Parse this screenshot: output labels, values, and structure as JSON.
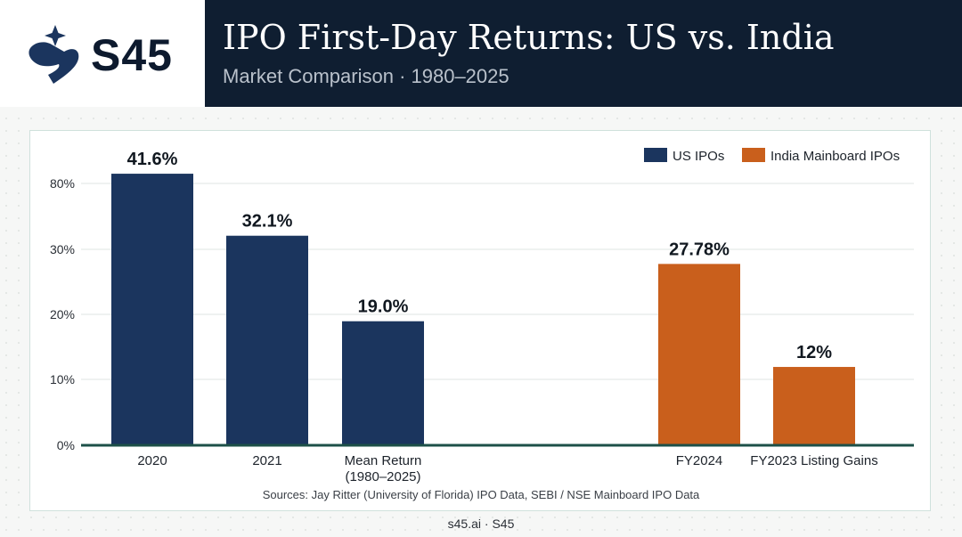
{
  "brand": {
    "name": "S45",
    "logo_icon": "s45-star-logo-icon",
    "colors": {
      "header_bg": "#0f1e31",
      "us": "#1b355e",
      "india": "#c95f1c",
      "baseline": "#1d5048"
    }
  },
  "header": {
    "title": "IPO First-Day Returns: US vs. India",
    "subtitle": "Market Comparison · 1980–2025"
  },
  "chart_data": {
    "type": "bar",
    "legend": [
      {
        "name": "US IPOs",
        "color": "#1b355e"
      },
      {
        "name": "India Mainboard IPOs",
        "color": "#c95f1c"
      }
    ],
    "legend_position": "top-right",
    "y_ticks": [
      "0%",
      "10%",
      "20%",
      "30%",
      "80%"
    ],
    "grid": true,
    "bars": [
      {
        "category": "2020",
        "category_lines": [
          "2020"
        ],
        "value": 41.6,
        "label": "41.6%",
        "series": "US IPOs"
      },
      {
        "category": "2021",
        "category_lines": [
          "2021"
        ],
        "value": 32.1,
        "label": "32.1%",
        "series": "US IPOs"
      },
      {
        "category": "Mean Return (1980–2025)",
        "category_lines": [
          "Mean Return",
          "(1980–2025)"
        ],
        "value": 19.0,
        "label": "19.0%",
        "series": "US IPOs"
      },
      {
        "category": "FY2024",
        "category_lines": [
          "FY2024"
        ],
        "value": 27.78,
        "label": "27.78%",
        "series": "India Mainboard IPOs"
      },
      {
        "category": "FY2023 Listing Gains",
        "category_lines": [
          "FY2023 Listing Gains"
        ],
        "value": 12,
        "label": "12%",
        "series": "India Mainboard IPOs"
      }
    ],
    "source": "Sources: Jay Ritter (University of Florida) IPO Data, SEBI / NSE Mainboard IPO Data"
  },
  "footer": "s45.ai · S45"
}
